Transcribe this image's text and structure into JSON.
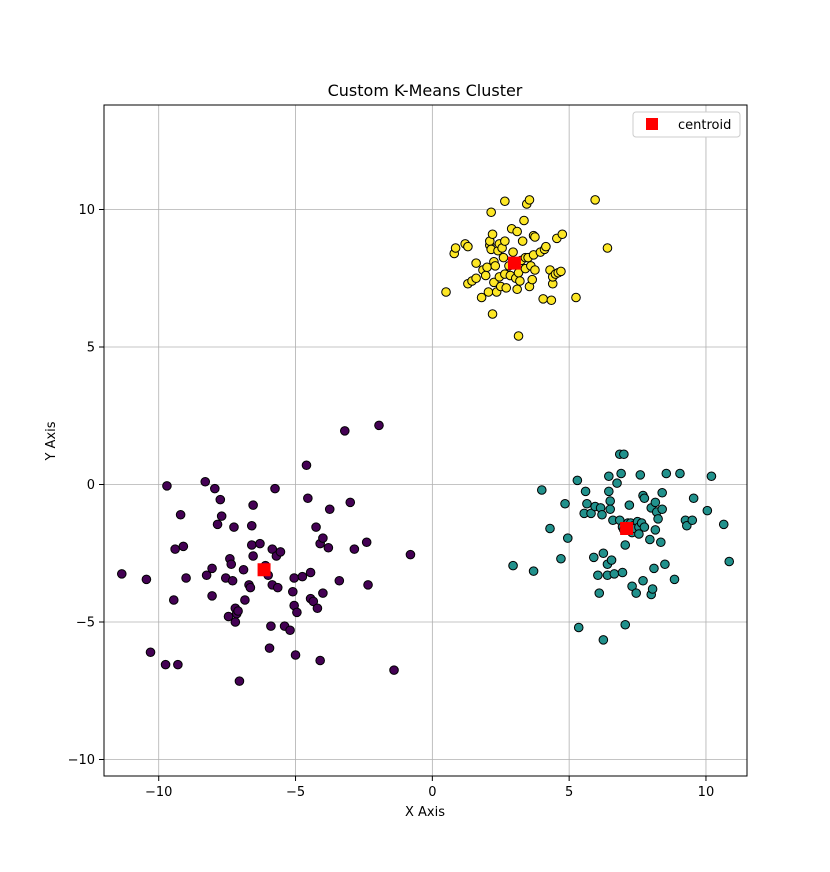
{
  "chart_data": {
    "type": "scatter",
    "title": "Custom K-Means Cluster",
    "xlabel": "X Axis",
    "ylabel": "Y Axis",
    "xlim": [
      -12,
      11.5
    ],
    "ylim": [
      -10.6,
      13.8
    ],
    "xticks": [
      -10,
      -5,
      0,
      5,
      10
    ],
    "yticks": [
      -10,
      -5,
      0,
      5,
      10
    ],
    "xtick_labels": [
      "−10",
      "−5",
      "0",
      "5",
      "10"
    ],
    "ytick_labels": [
      "−10",
      "−5",
      "0",
      "5",
      "10"
    ],
    "grid": true,
    "legend": {
      "placement": "top-right",
      "entries": [
        "centroid"
      ]
    },
    "colors": {
      "purple": "#440154",
      "teal": "#21918c",
      "yellow": "#fde725",
      "centroid": "#ff0000",
      "edge": "#000000",
      "grid": "#b0b0b0"
    },
    "series": [
      {
        "color": "#440154",
        "points": [
          [
            -11.35,
            -3.25
          ],
          [
            -10.45,
            -3.45
          ],
          [
            -10.3,
            -6.1
          ],
          [
            -9.7,
            -0.05
          ],
          [
            -9.75,
            -6.55
          ],
          [
            -9.45,
            -4.2
          ],
          [
            -9.4,
            -2.35
          ],
          [
            -9.3,
            -6.55
          ],
          [
            -9.2,
            -1.1
          ],
          [
            -9.1,
            -2.25
          ],
          [
            -9.0,
            -3.4
          ],
          [
            -8.3,
            0.1
          ],
          [
            -8.25,
            -3.3
          ],
          [
            -8.05,
            -3.05
          ],
          [
            -8.05,
            -4.05
          ],
          [
            -7.95,
            -0.15
          ],
          [
            -7.85,
            -1.45
          ],
          [
            -7.75,
            -0.55
          ],
          [
            -7.7,
            -1.15
          ],
          [
            -7.55,
            -3.4
          ],
          [
            -7.45,
            -4.8
          ],
          [
            -7.4,
            -2.7
          ],
          [
            -7.35,
            -2.9
          ],
          [
            -7.3,
            -3.5
          ],
          [
            -7.25,
            -1.55
          ],
          [
            -7.2,
            -4.5
          ],
          [
            -7.2,
            -5.0
          ],
          [
            -7.15,
            -4.7
          ],
          [
            -7.1,
            -4.6
          ],
          [
            -7.05,
            -7.15
          ],
          [
            -6.9,
            -3.1
          ],
          [
            -6.85,
            -4.2
          ],
          [
            -6.7,
            -3.65
          ],
          [
            -6.65,
            -3.75
          ],
          [
            -6.6,
            -2.2
          ],
          [
            -6.6,
            -1.5
          ],
          [
            -6.55,
            -0.75
          ],
          [
            -6.55,
            -2.6
          ],
          [
            -6.3,
            -2.15
          ],
          [
            -6.1,
            -2.95
          ],
          [
            -6.0,
            -3.3
          ],
          [
            -5.95,
            -5.95
          ],
          [
            -5.9,
            -5.15
          ],
          [
            -5.85,
            -2.35
          ],
          [
            -5.85,
            -3.65
          ],
          [
            -5.75,
            -0.15
          ],
          [
            -5.7,
            -2.6
          ],
          [
            -5.65,
            -3.75
          ],
          [
            -5.55,
            -2.45
          ],
          [
            -5.4,
            -5.15
          ],
          [
            -5.2,
            -5.3
          ],
          [
            -5.1,
            -3.9
          ],
          [
            -5.05,
            -3.4
          ],
          [
            -5.05,
            -4.4
          ],
          [
            -5.0,
            -6.2
          ],
          [
            -4.95,
            -4.65
          ],
          [
            -4.75,
            -3.35
          ],
          [
            -4.6,
            0.7
          ],
          [
            -4.55,
            -0.5
          ],
          [
            -4.45,
            -3.2
          ],
          [
            -4.45,
            -4.15
          ],
          [
            -4.35,
            -4.25
          ],
          [
            -4.25,
            -1.55
          ],
          [
            -4.2,
            -4.5
          ],
          [
            -4.1,
            -6.4
          ],
          [
            -4.1,
            -2.15
          ],
          [
            -4.0,
            -1.95
          ],
          [
            -4.0,
            -3.95
          ],
          [
            -3.8,
            -2.3
          ],
          [
            -3.75,
            -0.9
          ],
          [
            -3.4,
            -3.5
          ],
          [
            -3.2,
            1.95
          ],
          [
            -3.0,
            -0.65
          ],
          [
            -2.85,
            -2.35
          ],
          [
            -2.4,
            -2.1
          ],
          [
            -2.35,
            -3.65
          ],
          [
            -1.95,
            2.15
          ],
          [
            -1.4,
            -6.75
          ],
          [
            -0.8,
            -2.55
          ]
        ]
      },
      {
        "color": "#21918c",
        "points": [
          [
            2.95,
            -2.95
          ],
          [
            3.7,
            -3.15
          ],
          [
            4.0,
            -0.2
          ],
          [
            4.3,
            -1.6
          ],
          [
            4.7,
            -2.7
          ],
          [
            4.85,
            -0.7
          ],
          [
            4.95,
            -1.95
          ],
          [
            5.3,
            0.15
          ],
          [
            5.35,
            -5.2
          ],
          [
            5.55,
            -1.05
          ],
          [
            5.6,
            -0.25
          ],
          [
            5.65,
            -0.7
          ],
          [
            5.8,
            -1.05
          ],
          [
            5.9,
            -2.65
          ],
          [
            5.95,
            -0.8
          ],
          [
            6.05,
            -3.3
          ],
          [
            6.1,
            -3.95
          ],
          [
            6.15,
            -0.85
          ],
          [
            6.2,
            -1.1
          ],
          [
            6.25,
            -5.65
          ],
          [
            6.25,
            -2.5
          ],
          [
            6.4,
            -3.3
          ],
          [
            6.4,
            -2.9
          ],
          [
            6.45,
            0.3
          ],
          [
            6.45,
            -0.25
          ],
          [
            6.5,
            -0.6
          ],
          [
            6.5,
            -0.9
          ],
          [
            6.55,
            -2.75
          ],
          [
            6.6,
            -1.3
          ],
          [
            6.65,
            -3.25
          ],
          [
            6.75,
            0.05
          ],
          [
            6.85,
            1.1
          ],
          [
            6.85,
            -1.3
          ],
          [
            6.9,
            0.4
          ],
          [
            6.95,
            -3.2
          ],
          [
            6.95,
            -1.55
          ],
          [
            7.0,
            1.1
          ],
          [
            7.0,
            -1.65
          ],
          [
            7.05,
            -2.2
          ],
          [
            7.05,
            -5.1
          ],
          [
            7.15,
            -1.4
          ],
          [
            7.2,
            -0.75
          ],
          [
            7.25,
            -1.4
          ],
          [
            7.3,
            -1.75
          ],
          [
            7.3,
            -3.7
          ],
          [
            7.35,
            -1.5
          ],
          [
            7.4,
            -1.6
          ],
          [
            7.45,
            -3.95
          ],
          [
            7.5,
            -1.35
          ],
          [
            7.55,
            -1.55
          ],
          [
            7.55,
            -1.8
          ],
          [
            7.6,
            0.35
          ],
          [
            7.65,
            -1.4
          ],
          [
            7.7,
            -3.5
          ],
          [
            7.7,
            -0.4
          ],
          [
            7.75,
            -0.5
          ],
          [
            7.75,
            -1.55
          ],
          [
            7.95,
            -2.0
          ],
          [
            8.0,
            -0.85
          ],
          [
            8.0,
            -4.0
          ],
          [
            8.05,
            -3.8
          ],
          [
            8.1,
            -3.05
          ],
          [
            8.15,
            -0.65
          ],
          [
            8.15,
            -1.65
          ],
          [
            8.2,
            -1.0
          ],
          [
            8.25,
            -1.25
          ],
          [
            8.35,
            -2.1
          ],
          [
            8.4,
            -0.9
          ],
          [
            8.4,
            -0.3
          ],
          [
            8.5,
            -2.9
          ],
          [
            8.55,
            0.4
          ],
          [
            8.85,
            -3.45
          ],
          [
            9.05,
            0.4
          ],
          [
            9.25,
            -1.3
          ],
          [
            9.3,
            -1.5
          ],
          [
            9.5,
            -1.3
          ],
          [
            9.55,
            -0.5
          ],
          [
            10.05,
            -0.95
          ],
          [
            10.2,
            0.3
          ],
          [
            10.65,
            -1.45
          ],
          [
            10.85,
            -2.8
          ]
        ]
      },
      {
        "color": "#fde725",
        "points": [
          [
            0.5,
            7.0
          ],
          [
            0.8,
            8.4
          ],
          [
            0.85,
            8.6
          ],
          [
            1.2,
            8.75
          ],
          [
            1.3,
            8.65
          ],
          [
            1.3,
            7.3
          ],
          [
            1.45,
            7.4
          ],
          [
            1.6,
            7.5
          ],
          [
            1.6,
            8.05
          ],
          [
            1.8,
            6.8
          ],
          [
            1.85,
            7.8
          ],
          [
            1.95,
            7.6
          ],
          [
            2.0,
            7.9
          ],
          [
            2.05,
            7.0
          ],
          [
            2.1,
            8.7
          ],
          [
            2.1,
            8.85
          ],
          [
            2.15,
            8.55
          ],
          [
            2.15,
            9.9
          ],
          [
            2.2,
            9.1
          ],
          [
            2.2,
            6.2
          ],
          [
            2.25,
            8.1
          ],
          [
            2.25,
            7.35
          ],
          [
            2.3,
            7.95
          ],
          [
            2.35,
            7.0
          ],
          [
            2.4,
            8.5
          ],
          [
            2.45,
            8.75
          ],
          [
            2.45,
            7.55
          ],
          [
            2.5,
            7.2
          ],
          [
            2.55,
            8.6
          ],
          [
            2.6,
            8.25
          ],
          [
            2.65,
            7.65
          ],
          [
            2.65,
            8.85
          ],
          [
            2.65,
            10.3
          ],
          [
            2.7,
            7.15
          ],
          [
            2.8,
            7.95
          ],
          [
            2.85,
            7.6
          ],
          [
            2.9,
            9.3
          ],
          [
            2.95,
            8.45
          ],
          [
            3.0,
            8.05
          ],
          [
            3.05,
            7.5
          ],
          [
            3.1,
            7.1
          ],
          [
            3.1,
            9.2
          ],
          [
            3.15,
            7.95
          ],
          [
            3.15,
            7.7
          ],
          [
            3.15,
            5.4
          ],
          [
            3.2,
            7.4
          ],
          [
            3.25,
            8.15
          ],
          [
            3.3,
            8.85
          ],
          [
            3.35,
            9.6
          ],
          [
            3.4,
            7.85
          ],
          [
            3.4,
            8.25
          ],
          [
            3.45,
            10.2
          ],
          [
            3.5,
            8.25
          ],
          [
            3.55,
            10.35
          ],
          [
            3.55,
            7.2
          ],
          [
            3.6,
            7.95
          ],
          [
            3.65,
            7.45
          ],
          [
            3.7,
            9.05
          ],
          [
            3.7,
            8.35
          ],
          [
            3.75,
            9.0
          ],
          [
            3.75,
            7.8
          ],
          [
            3.95,
            8.45
          ],
          [
            4.05,
            6.75
          ],
          [
            4.1,
            8.55
          ],
          [
            4.15,
            8.65
          ],
          [
            4.3,
            7.8
          ],
          [
            4.35,
            6.7
          ],
          [
            4.4,
            7.3
          ],
          [
            4.4,
            7.55
          ],
          [
            4.5,
            7.65
          ],
          [
            4.55,
            8.95
          ],
          [
            4.6,
            7.7
          ],
          [
            4.7,
            7.75
          ],
          [
            4.75,
            9.1
          ],
          [
            5.25,
            6.8
          ],
          [
            5.95,
            10.35
          ],
          [
            6.4,
            8.6
          ]
        ]
      }
    ],
    "centroids": [
      [
        -6.15,
        -3.1
      ],
      [
        7.1,
        -1.6
      ],
      [
        3.0,
        8.05
      ]
    ]
  }
}
